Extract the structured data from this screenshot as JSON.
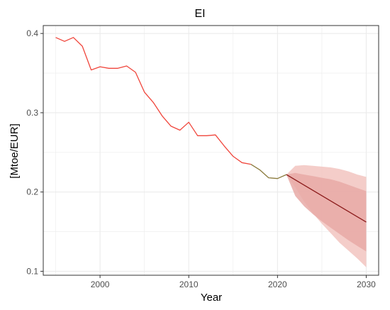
{
  "chart_data": {
    "type": "line",
    "title": "EI",
    "xlabel": "Year",
    "ylabel": "[Mtoe/EUR]",
    "xlim": [
      1993.6,
      2031.4
    ],
    "ylim": [
      0.095,
      0.41
    ],
    "x_ticks": [
      2000,
      2010,
      2020,
      2030
    ],
    "y_ticks": [
      0.1,
      0.2,
      0.3,
      0.4
    ],
    "grid": true,
    "legend": "none",
    "colors": {
      "historical": "#f0463c",
      "transition": "#8a7a3c",
      "forecast": "#8b1a1a",
      "band_outer": "#f2c4c0",
      "band_inner": "#e8a9a6",
      "panel_border": "#333333",
      "grid": "#ebebeb"
    },
    "series": [
      {
        "role": "historical",
        "x": [
          1995,
          1996,
          1997,
          1998,
          1999,
          2000,
          2001,
          2002,
          2003,
          2004,
          2005,
          2006,
          2007,
          2008,
          2009,
          2010,
          2011,
          2012,
          2013,
          2014,
          2015,
          2016,
          2017
        ],
        "values": [
          0.395,
          0.39,
          0.395,
          0.384,
          0.354,
          0.358,
          0.356,
          0.356,
          0.359,
          0.351,
          0.326,
          0.313,
          0.296,
          0.283,
          0.278,
          0.288,
          0.271,
          0.271,
          0.272,
          0.258,
          0.245,
          0.237,
          0.235
        ]
      },
      {
        "role": "transition",
        "x": [
          2017,
          2018,
          2019,
          2020,
          2021
        ],
        "values": [
          0.235,
          0.228,
          0.218,
          0.217,
          0.222
        ]
      },
      {
        "role": "forecast",
        "x": [
          2021,
          2030
        ],
        "values": [
          0.222,
          0.162
        ]
      }
    ],
    "bands": [
      {
        "role": "band_outer",
        "x": [
          2021,
          2022,
          2023,
          2024,
          2025,
          2026,
          2027,
          2028,
          2029,
          2030
        ],
        "upper": [
          0.222,
          0.233,
          0.234,
          0.233,
          0.232,
          0.231,
          0.229,
          0.226,
          0.222,
          0.219
        ],
        "lower": [
          0.222,
          0.206,
          0.188,
          0.173,
          0.16,
          0.148,
          0.136,
          0.126,
          0.116,
          0.105
        ]
      },
      {
        "role": "band_inner",
        "x": [
          2021,
          2022,
          2023,
          2024,
          2025,
          2026,
          2027,
          2028,
          2029,
          2030
        ],
        "upper": [
          0.222,
          0.224,
          0.222,
          0.22,
          0.218,
          0.216,
          0.213,
          0.209,
          0.205,
          0.201
        ],
        "lower": [
          0.222,
          0.195,
          0.182,
          0.172,
          0.163,
          0.155,
          0.147,
          0.139,
          0.132,
          0.125
        ]
      }
    ]
  }
}
